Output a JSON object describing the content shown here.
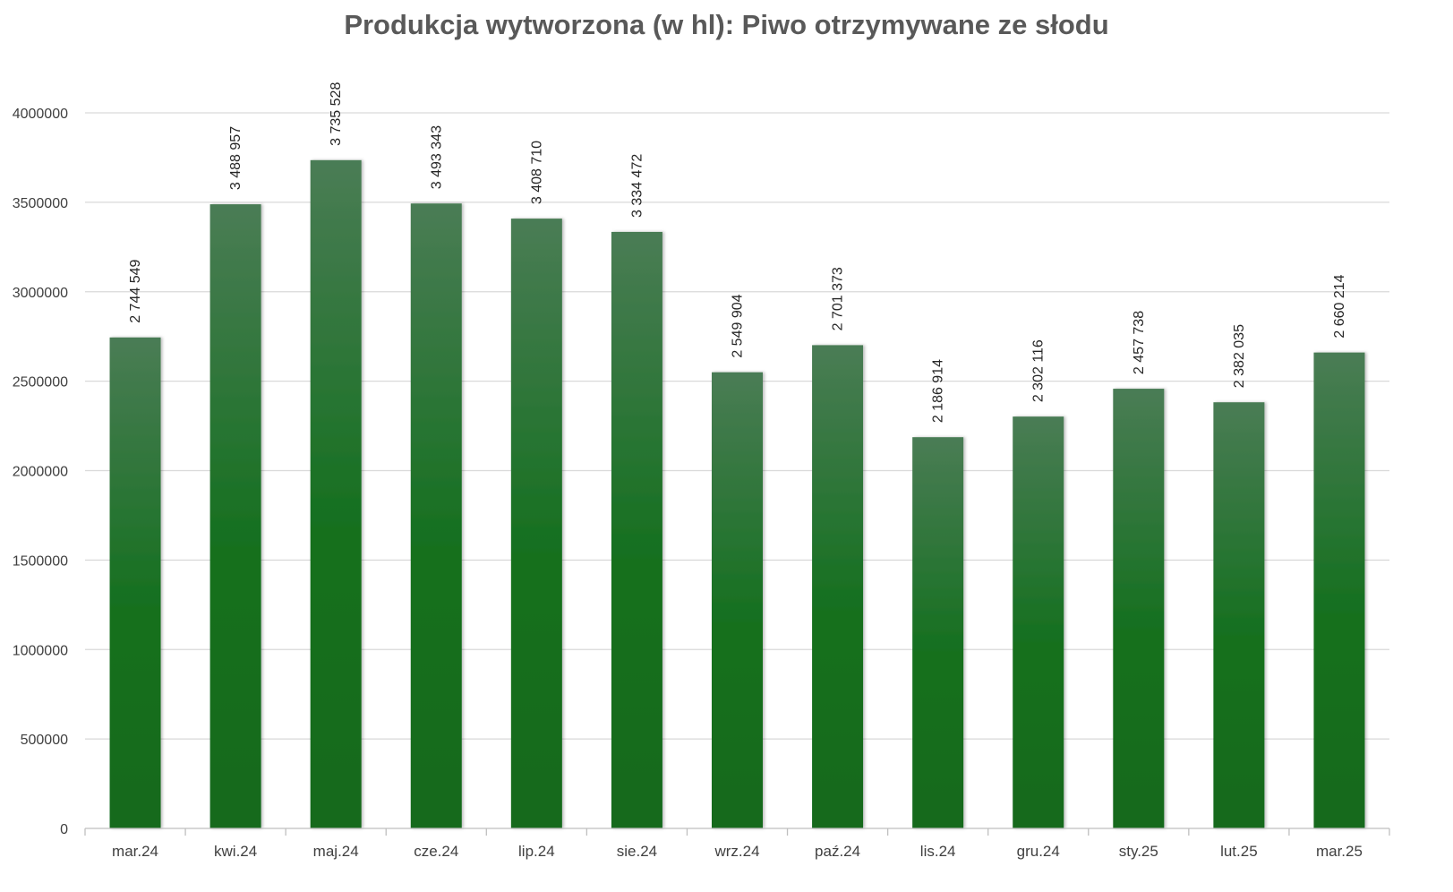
{
  "chart_data": {
    "type": "bar",
    "title": "Produkcja wytworzona (w hl): Piwo otrzymywane ze słodu",
    "xlabel": "",
    "ylabel": "",
    "categories": [
      "mar.24",
      "kwi.24",
      "maj.24",
      "cze.24",
      "lip.24",
      "sie.24",
      "wrz.24",
      "paź.24",
      "lis.24",
      "gru.24",
      "sty.25",
      "lut.25",
      "mar.25"
    ],
    "values": [
      2744549,
      3488957,
      3735528,
      3493343,
      3408710,
      3334472,
      2549904,
      2701373,
      2186914,
      2302116,
      2457738,
      2382035,
      2660214
    ],
    "data_labels": [
      "2 744 549",
      "3 488 957",
      "3 735 528",
      "3 493 343",
      "3 408 710",
      "3 334 472",
      "2 549 904",
      "2 701 373",
      "2 186 914",
      "2 302 116",
      "2 457 738",
      "2 382 035",
      "2 660 214"
    ],
    "ylim": [
      0,
      4000000
    ],
    "yticks": [
      0,
      500000,
      1000000,
      1500000,
      2000000,
      2500000,
      3000000,
      3500000,
      4000000
    ],
    "ytick_labels": [
      "0",
      "500000",
      "1000000",
      "1500000",
      "2000000",
      "2500000",
      "3000000",
      "3500000",
      "4000000"
    ],
    "grid": true,
    "legend": "none",
    "colors": {
      "bar_top": "#4a7c55",
      "bar_bottom": "#126a1e",
      "grid": "#d9d9d9",
      "axis": "#bfbfbf",
      "text": "#404040",
      "title": "#595959"
    }
  }
}
